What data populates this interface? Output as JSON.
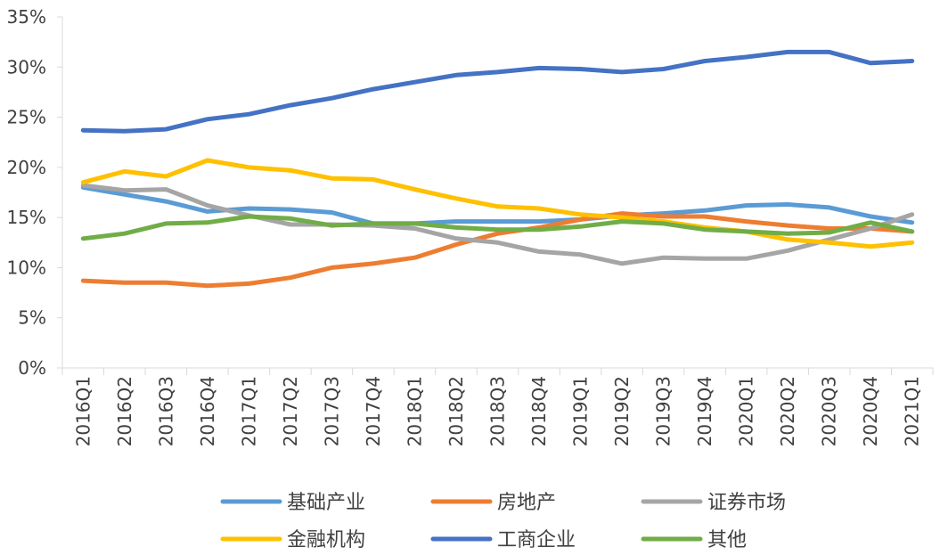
{
  "chart_data": {
    "type": "line",
    "title": "",
    "xlabel": "",
    "ylabel": "",
    "ylim": [
      0,
      35
    ],
    "y_ticks": [
      "0%",
      "5%",
      "10%",
      "15%",
      "20%",
      "25%",
      "30%",
      "35%"
    ],
    "y_tick_values": [
      0,
      5,
      10,
      15,
      20,
      25,
      30,
      35
    ],
    "grid": false,
    "legend_position": "bottom",
    "categories": [
      "2016Q1",
      "2016Q2",
      "2016Q3",
      "2016Q4",
      "2017Q1",
      "2017Q2",
      "2017Q3",
      "2017Q4",
      "2018Q1",
      "2018Q2",
      "2018Q3",
      "2018Q4",
      "2019Q1",
      "2019Q2",
      "2019Q3",
      "2019Q4",
      "2020Q1",
      "2020Q2",
      "2020Q3",
      "2020Q4",
      "2021Q1"
    ],
    "series": [
      {
        "name": "基础产业",
        "color": "#5B9BD5",
        "values": [
          18.0,
          17.3,
          16.6,
          15.6,
          15.9,
          15.8,
          15.5,
          14.4,
          14.4,
          14.6,
          14.6,
          14.6,
          14.8,
          15.2,
          15.4,
          15.7,
          16.2,
          16.3,
          16.0,
          15.1,
          14.5
        ]
      },
      {
        "name": "房地产",
        "color": "#ED7D31",
        "values": [
          8.7,
          8.5,
          8.5,
          8.2,
          8.4,
          9.0,
          10.0,
          10.4,
          11.0,
          12.3,
          13.4,
          14.0,
          14.8,
          15.4,
          15.1,
          15.1,
          14.6,
          14.2,
          13.9,
          13.9,
          13.6
        ]
      },
      {
        "name": "证券市场",
        "color": "#A5A5A5",
        "values": [
          18.2,
          17.7,
          17.8,
          16.2,
          15.2,
          14.3,
          14.3,
          14.2,
          13.9,
          12.9,
          12.5,
          11.6,
          11.3,
          10.4,
          11.0,
          10.9,
          10.9,
          11.7,
          12.8,
          13.9,
          15.3
        ]
      },
      {
        "name": "金融机构",
        "color": "#FFC000",
        "values": [
          18.5,
          19.6,
          19.1,
          20.7,
          20.0,
          19.7,
          18.9,
          18.8,
          17.8,
          16.9,
          16.1,
          15.9,
          15.3,
          15.0,
          14.6,
          14.0,
          13.6,
          12.8,
          12.5,
          12.1,
          12.5
        ]
      },
      {
        "name": "工商企业",
        "color": "#4472C4",
        "values": [
          23.7,
          23.6,
          23.8,
          24.8,
          25.3,
          26.2,
          26.9,
          27.8,
          28.5,
          29.2,
          29.5,
          29.9,
          29.8,
          29.5,
          29.8,
          30.6,
          31.0,
          31.5,
          31.5,
          30.4,
          30.6
        ]
      },
      {
        "name": "其他",
        "color": "#70AD47",
        "values": [
          12.9,
          13.4,
          14.4,
          14.5,
          15.1,
          14.9,
          14.2,
          14.4,
          14.4,
          14.0,
          13.8,
          13.8,
          14.1,
          14.6,
          14.4,
          13.8,
          13.6,
          13.4,
          13.5,
          14.5,
          13.6
        ]
      }
    ]
  }
}
